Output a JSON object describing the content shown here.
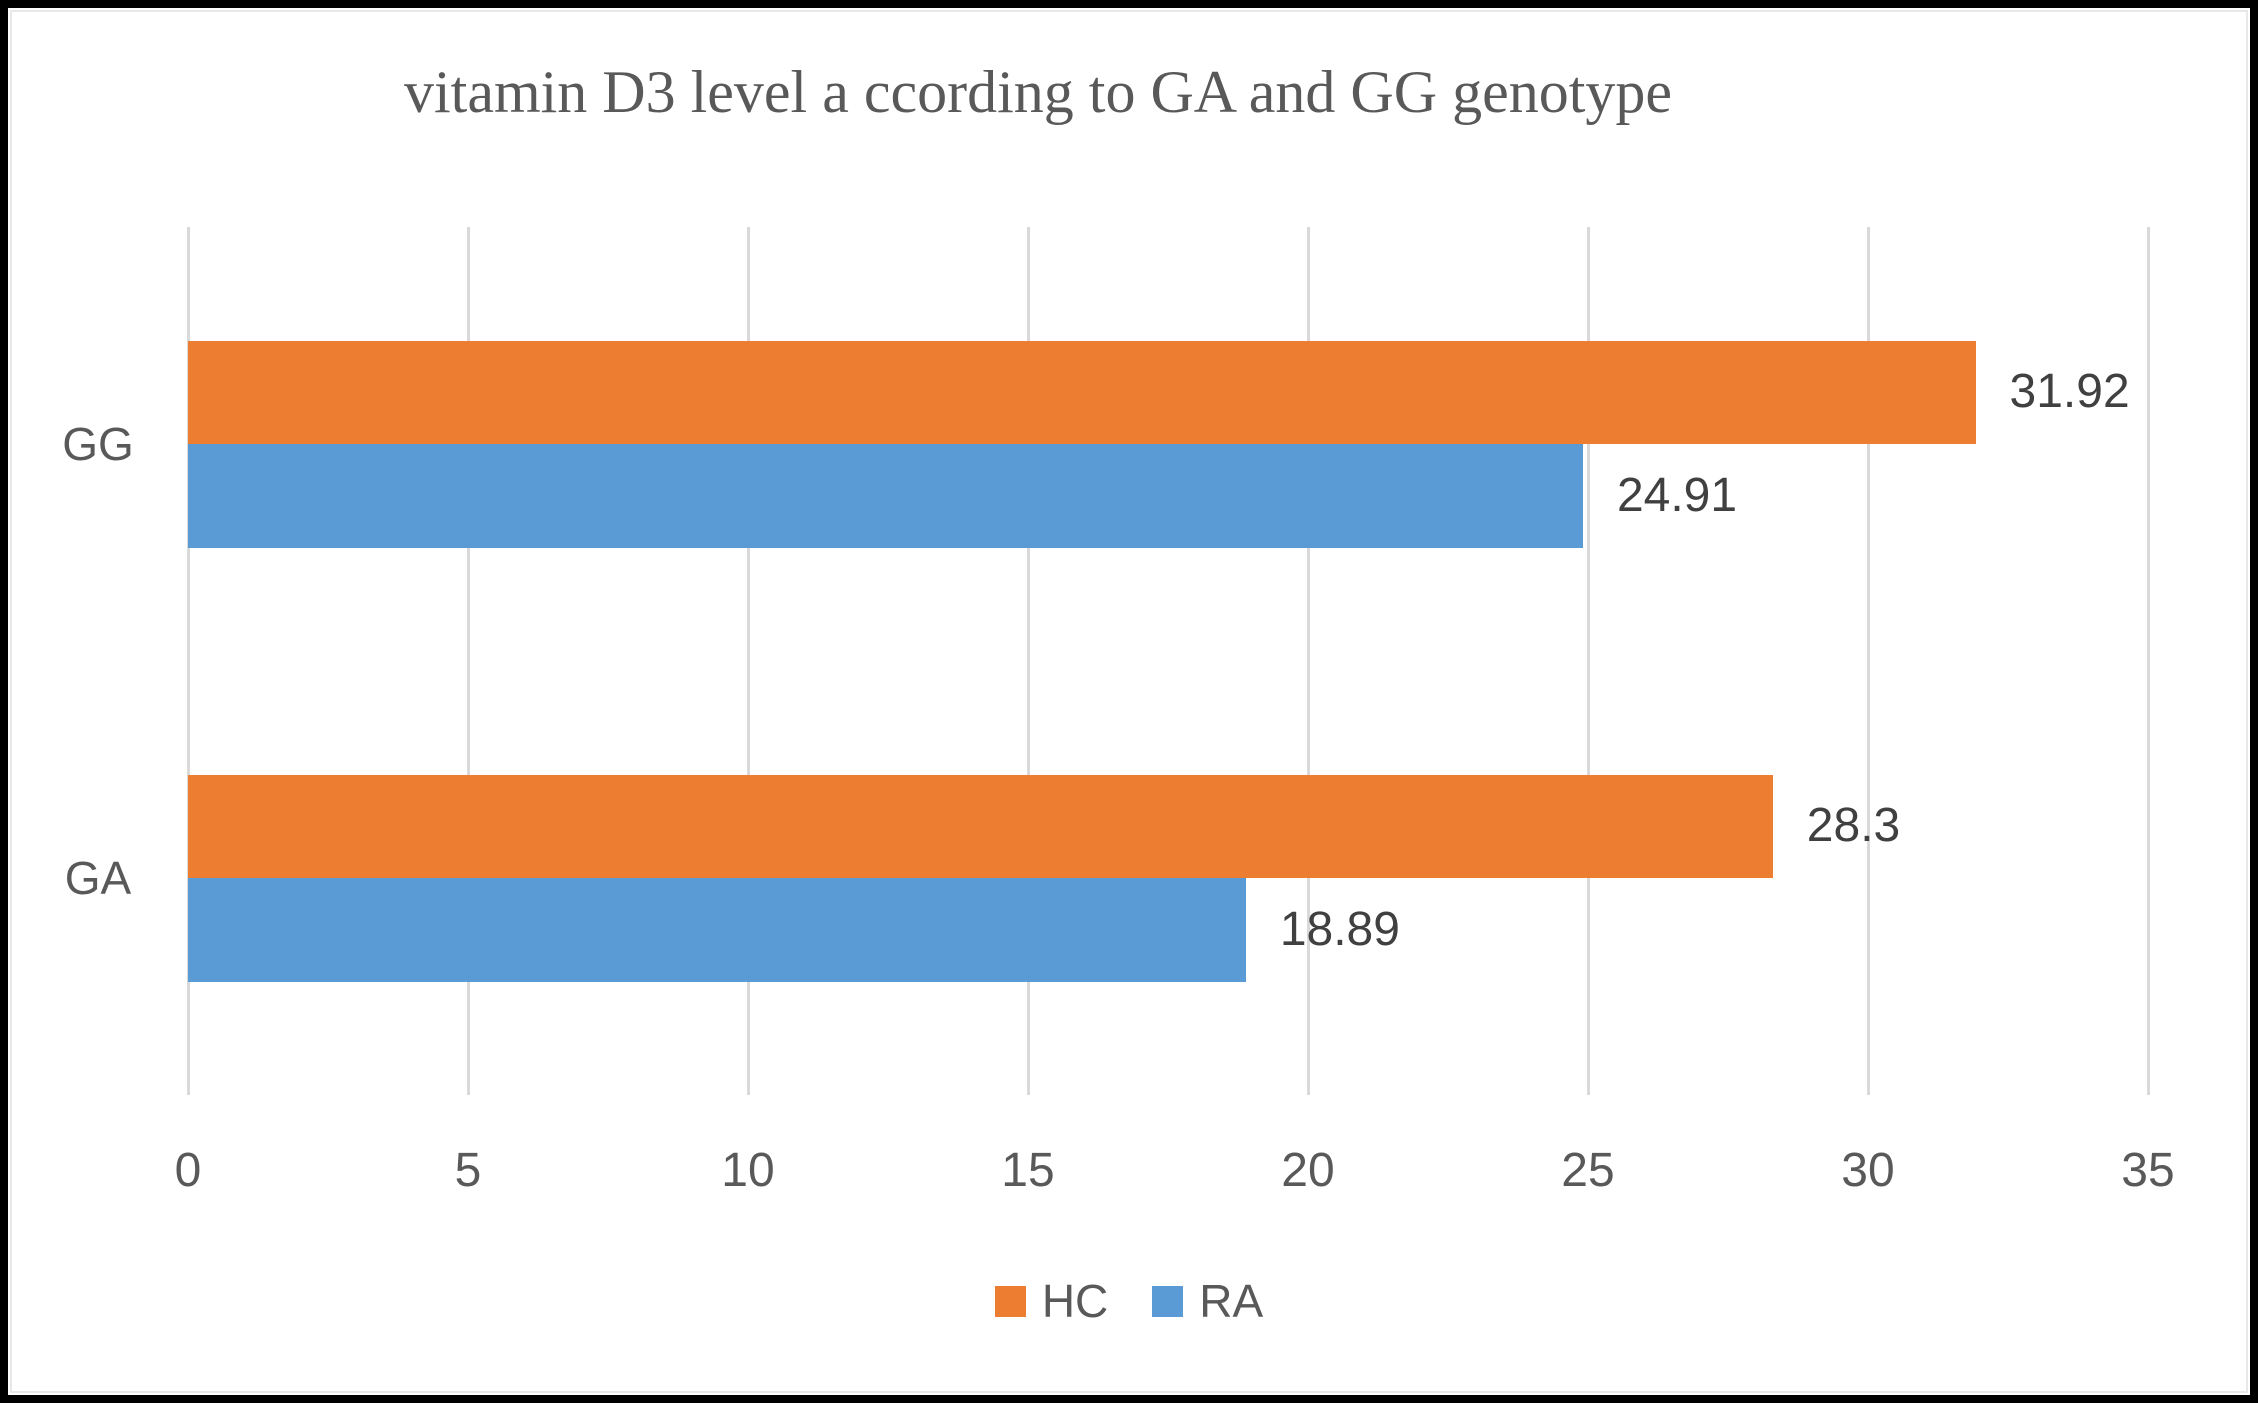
{
  "frame": {
    "border_color": "#000000",
    "inner_border_color": "#e8e8e8",
    "background": "#ffffff"
  },
  "chart_data": {
    "type": "bar",
    "orientation": "horizontal",
    "title": "vitamin D3 level a ccording to GA and GG genotype",
    "categories": [
      "GG",
      "GA"
    ],
    "series": [
      {
        "name": "HC",
        "color": "#ED7D31",
        "values": [
          31.92,
          28.3
        ],
        "labels": [
          "31.92",
          "28.3"
        ]
      },
      {
        "name": "RA",
        "color": "#5B9BD5",
        "values": [
          24.91,
          18.89
        ],
        "labels": [
          "24.91",
          "18.89"
        ]
      }
    ],
    "xlabel": "",
    "ylabel": "",
    "xlim": [
      0,
      35
    ],
    "x_ticks": [
      "0",
      "5",
      "10",
      "15",
      "20",
      "25",
      "30",
      "35"
    ],
    "gridlines": true,
    "gridline_color": "#D9D9D9",
    "title_color": "#595959",
    "tick_color": "#595959",
    "data_label_color": "#404040",
    "legend": {
      "position": "bottom",
      "entries": [
        "HC",
        "RA"
      ]
    }
  }
}
